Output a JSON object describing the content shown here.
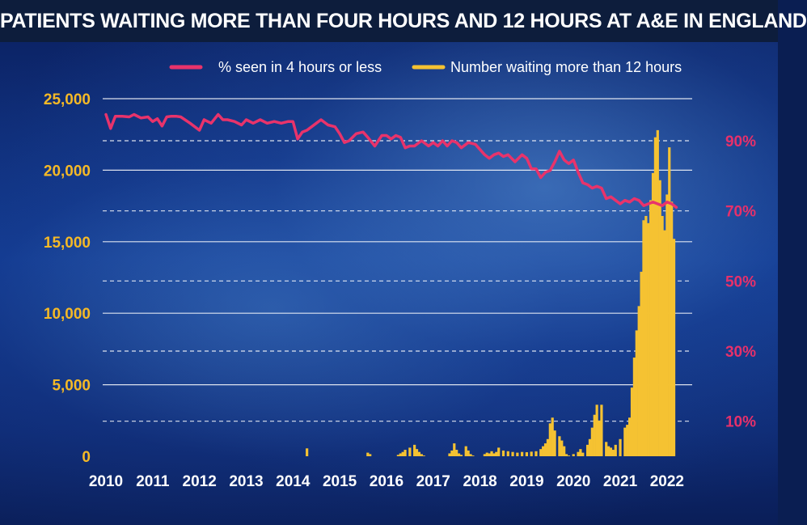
{
  "title": "PATIENTS WAITING MORE THAN FOUR HOURS AND 12 HOURS AT A&E IN ENGLAND",
  "colors": {
    "line": "#e8336b",
    "bars": "#f5c232",
    "left_ticks": "#f5b926",
    "right_ticks": "#e7306a"
  },
  "chart_data": {
    "type": "bar",
    "title": "PATIENTS WAITING MORE THAN FOUR HOURS AND 12 HOURS AT A&E IN ENGLAND",
    "xlabel": "",
    "ylabel": "",
    "x_ticks": [
      "2010",
      "2011",
      "2012",
      "2013",
      "2014",
      "2015",
      "2016",
      "2017",
      "2018",
      "2019",
      "2020",
      "2021",
      "2022"
    ],
    "x_range": [
      2010,
      2022.4
    ],
    "left_axis": {
      "ticks": [
        0,
        5000,
        10000,
        15000,
        20000,
        25000
      ],
      "tick_labels": [
        "0",
        "5,000",
        "10,000",
        "15,000",
        "20,000",
        "25,000"
      ],
      "range": [
        0,
        25000
      ]
    },
    "right_axis": {
      "ticks": [
        10,
        30,
        50,
        70,
        90
      ],
      "tick_labels": [
        "10%",
        "30%",
        "50%",
        "70%",
        "90%"
      ],
      "range": [
        0,
        102
      ]
    },
    "legend": [
      {
        "label": "% seen in 4 hours or less",
        "type": "line"
      },
      {
        "label": "Number waiting more than 12 hours",
        "type": "bar"
      }
    ],
    "series": [
      {
        "name": "% seen in 4 hours or less",
        "type": "line",
        "axis": "right",
        "x": [
          2010.0,
          2010.1,
          2010.2,
          2010.35,
          2010.5,
          2010.6,
          2010.75,
          2010.9,
          2011.0,
          2011.1,
          2011.2,
          2011.3,
          2011.4,
          2011.5,
          2011.6,
          2011.8,
          2012.0,
          2012.1,
          2012.25,
          2012.4,
          2012.5,
          2012.6,
          2012.75,
          2012.9,
          2013.0,
          2013.15,
          2013.3,
          2013.45,
          2013.6,
          2013.75,
          2013.9,
          2014.0,
          2014.1,
          2014.2,
          2014.3,
          2014.4,
          2014.5,
          2014.6,
          2014.75,
          2014.9,
          2015.0,
          2015.1,
          2015.2,
          2015.35,
          2015.5,
          2015.6,
          2015.75,
          2015.9,
          2016.0,
          2016.1,
          2016.2,
          2016.3,
          2016.4,
          2016.5,
          2016.6,
          2016.75,
          2016.9,
          2017.0,
          2017.1,
          2017.2,
          2017.3,
          2017.4,
          2017.5,
          2017.6,
          2017.75,
          2017.9,
          2018.0,
          2018.1,
          2018.2,
          2018.3,
          2018.4,
          2018.5,
          2018.6,
          2018.75,
          2018.9,
          2019.0,
          2019.1,
          2019.2,
          2019.3,
          2019.4,
          2019.5,
          2019.6,
          2019.7,
          2019.8,
          2019.9,
          2020.0,
          2020.1,
          2020.2,
          2020.3,
          2020.4,
          2020.5,
          2020.6,
          2020.7,
          2020.8,
          2020.9,
          2021.0,
          2021.1,
          2021.2,
          2021.3,
          2021.4,
          2021.5,
          2021.6,
          2021.7,
          2021.8,
          2021.9,
          2022.0,
          2022.1,
          2022.2
        ],
        "values": [
          97.5,
          93.5,
          97,
          97,
          96.8,
          97.5,
          96.5,
          96.8,
          95.5,
          96.3,
          94.2,
          96.8,
          97,
          97,
          96.8,
          95,
          93,
          96,
          95,
          97.5,
          96,
          96,
          95.5,
          94.5,
          96,
          95,
          96,
          95,
          95.5,
          95,
          95.5,
          95.5,
          90.5,
          92.5,
          93,
          94,
          95,
          96,
          94.5,
          94,
          92,
          89.5,
          90,
          92,
          92.5,
          91,
          88.5,
          91.5,
          91.5,
          90.5,
          91.5,
          91,
          88,
          88.5,
          88.5,
          90,
          88.5,
          89.5,
          88.5,
          90,
          88.5,
          90,
          89.5,
          88,
          89.5,
          89,
          87.5,
          86,
          85,
          86,
          86.5,
          85.5,
          86,
          84,
          86,
          85,
          82,
          82,
          79.5,
          81,
          81.5,
          84,
          87,
          84.5,
          83.5,
          84.5,
          81,
          78,
          77.5,
          76.5,
          77,
          76.5,
          73.5,
          74,
          73,
          72,
          73,
          72.5,
          73.5,
          73,
          71.5,
          72,
          72.5,
          72,
          71.5,
          72.5,
          72,
          71
        ]
      },
      {
        "name": "Number waiting more than 12 hours",
        "type": "bar",
        "axis": "left",
        "x": [
          2014.3,
          2015.6,
          2015.65,
          2016.25,
          2016.3,
          2016.35,
          2016.4,
          2016.5,
          2016.6,
          2016.65,
          2016.7,
          2016.75,
          2016.8,
          2017.35,
          2017.4,
          2017.45,
          2017.5,
          2017.55,
          2017.6,
          2017.7,
          2017.75,
          2017.8,
          2017.85,
          2018.1,
          2018.15,
          2018.2,
          2018.25,
          2018.3,
          2018.35,
          2018.4,
          2018.5,
          2018.6,
          2018.7,
          2018.8,
          2018.9,
          2019.0,
          2019.1,
          2019.2,
          2019.3,
          2019.35,
          2019.4,
          2019.45,
          2019.5,
          2019.55,
          2019.6,
          2019.7,
          2019.75,
          2019.8,
          2019.85,
          2019.9,
          2020.0,
          2020.1,
          2020.15,
          2020.2,
          2020.3,
          2020.35,
          2020.4,
          2020.45,
          2020.5,
          2020.55,
          2020.6,
          2020.7,
          2020.75,
          2020.8,
          2020.85,
          2020.9,
          2021.0,
          2021.1,
          2021.15,
          2021.2,
          2021.25,
          2021.3,
          2021.35,
          2021.4,
          2021.45,
          2021.5,
          2021.55,
          2021.6,
          2021.65,
          2021.7,
          2021.75,
          2021.8,
          2021.85,
          2021.9,
          2021.95,
          2022.0,
          2022.05,
          2022.1,
          2022.15
        ],
        "values": [
          550,
          250,
          150,
          100,
          200,
          300,
          450,
          600,
          800,
          500,
          300,
          150,
          50,
          200,
          400,
          900,
          450,
          200,
          100,
          700,
          400,
          150,
          50,
          150,
          250,
          200,
          350,
          200,
          300,
          600,
          400,
          350,
          300,
          250,
          300,
          280,
          320,
          350,
          500,
          700,
          900,
          1200,
          2300,
          2700,
          1800,
          1400,
          1100,
          700,
          150,
          50,
          150,
          300,
          500,
          250,
          800,
          1200,
          2000,
          2900,
          3600,
          2500,
          3600,
          1000,
          700,
          600,
          450,
          800,
          1200,
          2000,
          2200,
          2700,
          4800,
          6900,
          8800,
          10500,
          12900,
          16500,
          16800,
          16300,
          17900,
          19800,
          22300,
          22800,
          19300,
          16800,
          15800,
          18300,
          21600,
          17800,
          15200
        ]
      }
    ]
  }
}
